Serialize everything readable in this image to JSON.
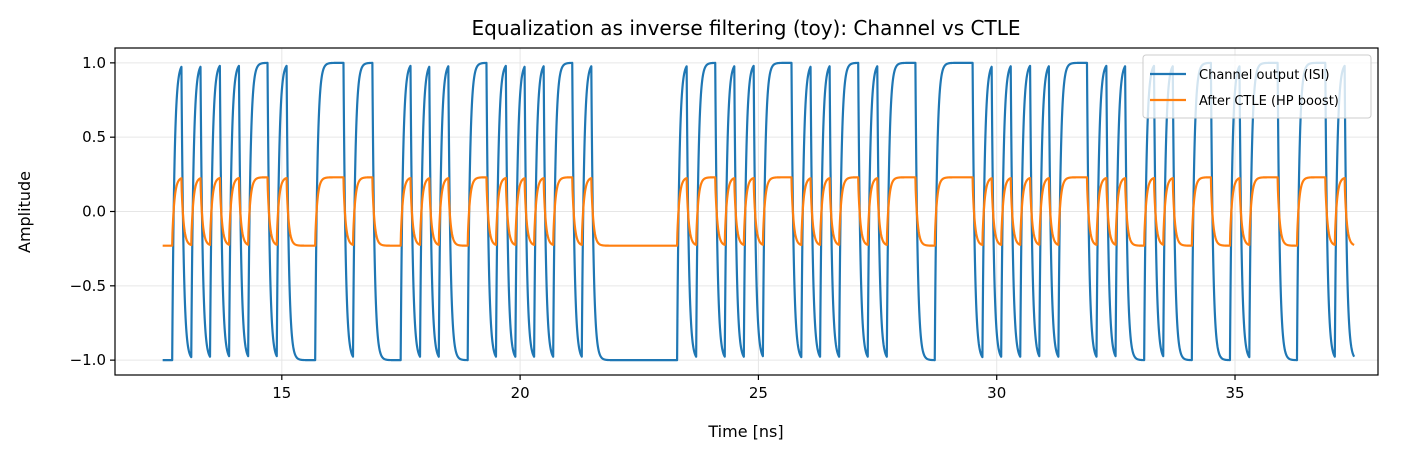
{
  "chart_data": {
    "type": "line",
    "title": "Equalization as inverse filtering (toy): Channel vs CTLE",
    "xlabel": "Time [ns]",
    "ylabel": "Amplitude",
    "xlim": [
      11.5,
      38.0
    ],
    "ylim": [
      -1.1,
      1.1
    ],
    "xticks": [
      15,
      20,
      25,
      30,
      35
    ],
    "xtick_labels": [
      "15",
      "20",
      "25",
      "30",
      "35"
    ],
    "yticks": [
      1.0,
      0.5,
      0.0,
      -0.5,
      -1.0
    ],
    "ytick_labels": [
      "1.0",
      "0.5",
      "0.0",
      "−0.5",
      "−1.0"
    ],
    "grid": true,
    "legend_position": "top-right",
    "bit_period_ns": 0.2,
    "t_start": 12.5,
    "t_end": 37.5,
    "bit_pattern": "0101010101101000111011000101010011010101011010000000001011010101110101011010111001111010101010111010100101001100101110011101000010101010101011101010101001001010101001001101010101011010101110101010101010101010010101100110011010100101010101011010110100000000101010100000101011101010101000101010101110",
    "series": [
      {
        "name": "Channel output (ISI)",
        "color": "#1f77b4",
        "kind": "channel",
        "amplitude": 1.0
      },
      {
        "name": "After CTLE (HP boost)",
        "color": "#ff7f0e",
        "kind": "ctle",
        "amplitude": 0.25
      }
    ]
  }
}
